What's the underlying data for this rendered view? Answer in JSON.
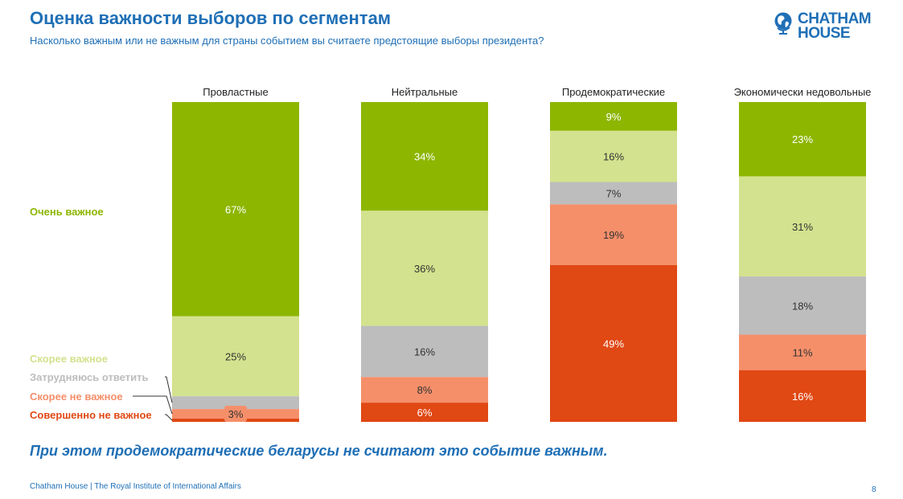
{
  "header": {
    "title": "Оценка важности выборов по сегментам",
    "subtitle": "Насколько важным или не важным для страны событием вы считаете предстоящие выборы президента?"
  },
  "logo": {
    "line1": "CHATHAM",
    "line2": "HOUSE",
    "icon": "globe-icon"
  },
  "colors": {
    "brand_blue": "#1f6fb6",
    "very_important": "#8db600",
    "somewhat_important": "#d3e28e",
    "dont_know": "#bdbdbd",
    "somewhat_not_important": "#f58f6a",
    "not_important_at_all": "#e04814"
  },
  "chart_data": {
    "type": "bar",
    "stacked": true,
    "normalized": true,
    "categories": [
      "Провластные",
      "Нейтральные",
      "Продемократические",
      "Экономически недовольные"
    ],
    "series": [
      {
        "name": "Очень важное",
        "color": "#8db600",
        "text_color": "#ffffff",
        "values": [
          67,
          34,
          9,
          23
        ]
      },
      {
        "name": "Скорее важное",
        "color": "#d3e28e",
        "text_color": "#333333",
        "values": [
          25,
          36,
          16,
          31
        ]
      },
      {
        "name": "Затрудняюсь ответить",
        "color": "#bdbdbd",
        "text_color": "#333333",
        "values": [
          4,
          16,
          7,
          18
        ]
      },
      {
        "name": "Скорее не важное",
        "color": "#f58f6a",
        "text_color": "#333333",
        "values": [
          3,
          8,
          19,
          11
        ]
      },
      {
        "name": "Совершенно не важное",
        "color": "#e04814",
        "text_color": "#ffffff",
        "values": [
          1,
          6,
          49,
          16
        ]
      }
    ],
    "data_labels": [
      [
        "67%",
        "34%",
        "9%",
        "23%"
      ],
      [
        "25%",
        "36%",
        "16%",
        "31%"
      ],
      [
        "",
        "16%",
        "7%",
        "18%"
      ],
      [
        "3%",
        "8%",
        "19%",
        "11%"
      ],
      [
        "",
        "6%",
        "49%",
        "16%"
      ]
    ],
    "legend_placement": "left, aligned with first bar segments",
    "grid": false
  },
  "conclusion": "При этом продемократические беларусы не считают это событие важным.",
  "footer": {
    "text": "Chatham House  |  The Royal Institute of International Affairs",
    "page": "8"
  }
}
